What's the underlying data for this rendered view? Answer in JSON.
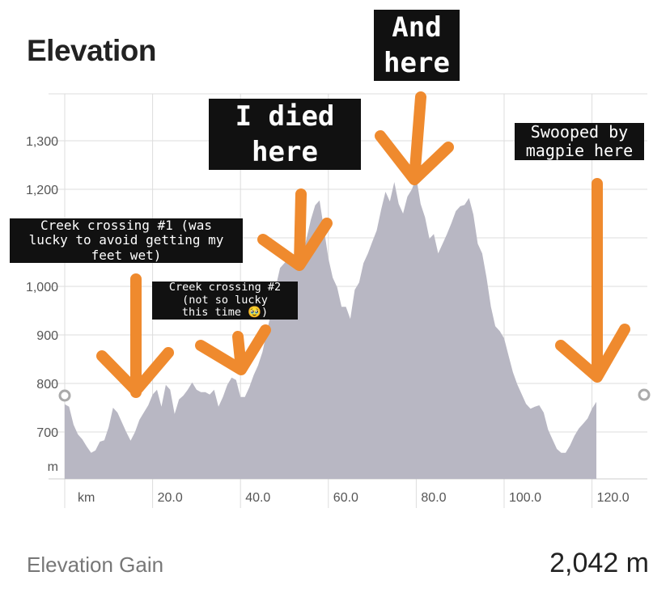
{
  "title": "Elevation",
  "footer": {
    "label": "Elevation Gain",
    "value": "2,042 m"
  },
  "annotations": {
    "creek1": "Creek crossing #1 (was\nlucky to avoid getting my\nfeet wet)",
    "creek2": "Creek crossing #2\n(not so lucky\nthis time 🥹)",
    "died": "I died\nhere",
    "and_here": "And\nhere",
    "magpie": "Swooped by\nmagpie here"
  },
  "colors": {
    "area": "#b8b7c3",
    "arrow": "#ef8a2e",
    "grid": "#dddddd"
  },
  "chart_data": {
    "type": "area",
    "xlabel": "km",
    "ylabel": "m",
    "x_ticks": [
      "20.0",
      "40.0",
      "60.0",
      "80.0",
      "100.0",
      "120.0"
    ],
    "y_ticks": [
      "700",
      "800",
      "900",
      "1,000",
      "1,100",
      "1,200",
      "1,300"
    ],
    "xlim": [
      0,
      131
    ],
    "ylim": [
      630,
      1380
    ],
    "points": [
      [
        0,
        757
      ],
      [
        1,
        752
      ],
      [
        2,
        715
      ],
      [
        3,
        695
      ],
      [
        4,
        685
      ],
      [
        5,
        670
      ],
      [
        6,
        657
      ],
      [
        7,
        662
      ],
      [
        8,
        680
      ],
      [
        9,
        683
      ],
      [
        10,
        710
      ],
      [
        11,
        750
      ],
      [
        12,
        740
      ],
      [
        13,
        720
      ],
      [
        14,
        700
      ],
      [
        15,
        682
      ],
      [
        16,
        700
      ],
      [
        17,
        725
      ],
      [
        18,
        740
      ],
      [
        19,
        755
      ],
      [
        20,
        777
      ],
      [
        21,
        787
      ],
      [
        22,
        752
      ],
      [
        23,
        797
      ],
      [
        24,
        787
      ],
      [
        25,
        737
      ],
      [
        26,
        767
      ],
      [
        27,
        775
      ],
      [
        28,
        787
      ],
      [
        29,
        802
      ],
      [
        30,
        787
      ],
      [
        31,
        782
      ],
      [
        32,
        782
      ],
      [
        33,
        777
      ],
      [
        34,
        787
      ],
      [
        35,
        752
      ],
      [
        36,
        772
      ],
      [
        37,
        797
      ],
      [
        38,
        812
      ],
      [
        39,
        807
      ],
      [
        40,
        772
      ],
      [
        41,
        772
      ],
      [
        42,
        792
      ],
      [
        43,
        817
      ],
      [
        44,
        837
      ],
      [
        45,
        865
      ],
      [
        46,
        907
      ],
      [
        47,
        947
      ],
      [
        48,
        998
      ],
      [
        49,
        1038
      ],
      [
        50,
        1048
      ],
      [
        51,
        1058
      ],
      [
        52,
        1042
      ],
      [
        53,
        1032
      ],
      [
        54,
        1058
      ],
      [
        55,
        1097
      ],
      [
        56,
        1137
      ],
      [
        57,
        1167
      ],
      [
        58,
        1177
      ],
      [
        59,
        1118
      ],
      [
        60,
        1058
      ],
      [
        61,
        1018
      ],
      [
        62,
        998
      ],
      [
        63,
        958
      ],
      [
        64,
        958
      ],
      [
        65,
        933
      ],
      [
        66,
        993
      ],
      [
        67,
        1008
      ],
      [
        68,
        1048
      ],
      [
        69,
        1068
      ],
      [
        70,
        1092
      ],
      [
        71,
        1115
      ],
      [
        72,
        1158
      ],
      [
        73,
        1195
      ],
      [
        74,
        1175
      ],
      [
        75,
        1215
      ],
      [
        76,
        1170
      ],
      [
        77,
        1150
      ],
      [
        78,
        1185
      ],
      [
        79,
        1200
      ],
      [
        80,
        1225
      ],
      [
        81,
        1170
      ],
      [
        82,
        1142
      ],
      [
        83,
        1098
      ],
      [
        84,
        1108
      ],
      [
        85,
        1068
      ],
      [
        86,
        1088
      ],
      [
        87,
        1108
      ],
      [
        88,
        1130
      ],
      [
        89,
        1155
      ],
      [
        90,
        1165
      ],
      [
        91,
        1168
      ],
      [
        92,
        1182
      ],
      [
        93,
        1148
      ],
      [
        94,
        1088
      ],
      [
        95,
        1068
      ],
      [
        96,
        1018
      ],
      [
        97,
        958
      ],
      [
        98,
        918
      ],
      [
        99,
        908
      ],
      [
        100,
        893
      ],
      [
        101,
        858
      ],
      [
        102,
        823
      ],
      [
        103,
        798
      ],
      [
        104,
        778
      ],
      [
        105,
        758
      ],
      [
        106,
        748
      ],
      [
        107,
        752
      ],
      [
        108,
        755
      ],
      [
        109,
        740
      ],
      [
        110,
        705
      ],
      [
        111,
        685
      ],
      [
        112,
        665
      ],
      [
        113,
        657
      ],
      [
        114,
        657
      ],
      [
        115,
        672
      ],
      [
        116,
        692
      ],
      [
        117,
        707
      ],
      [
        118,
        717
      ],
      [
        119,
        728
      ],
      [
        120,
        748
      ],
      [
        121,
        762
      ]
    ]
  }
}
